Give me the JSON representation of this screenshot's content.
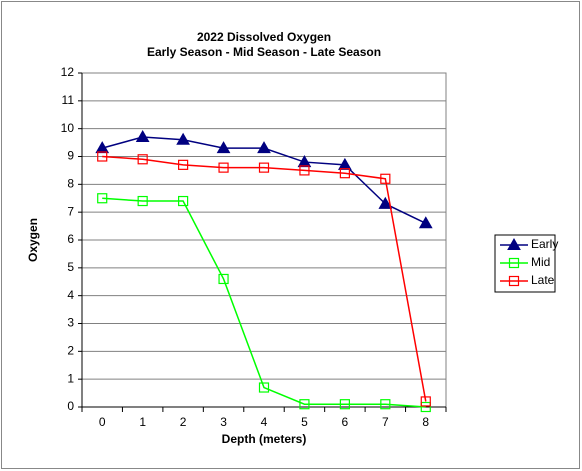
{
  "chart_data": {
    "type": "line",
    "title": "2022  Dissolved Oxygen",
    "subtitle": "Early Season - Mid Season - Late Season",
    "x_label": "Depth (meters)",
    "y_label": "Oxygen",
    "categories": [
      "0",
      "1",
      "2",
      "3",
      "4",
      "5",
      "6",
      "7",
      "8"
    ],
    "series": [
      {
        "name": "Early",
        "color": "#000080",
        "marker": "triangle",
        "values": [
          9.3,
          9.7,
          9.6,
          9.3,
          9.3,
          8.8,
          8.7,
          7.3,
          6.6
        ]
      },
      {
        "name": "Mid",
        "color": "#00ff00",
        "marker": "square",
        "values": [
          7.5,
          7.4,
          7.4,
          4.6,
          0.7,
          0.1,
          0.1,
          0.1,
          0.0
        ]
      },
      {
        "name": "Late",
        "color": "#ff0000",
        "marker": "square",
        "values": [
          9.0,
          8.9,
          8.7,
          8.6,
          8.6,
          8.5,
          8.4,
          8.2,
          0.2
        ]
      }
    ],
    "ylim": [
      0,
      12
    ],
    "yticks": [
      0,
      1,
      2,
      3,
      4,
      5,
      6,
      7,
      8,
      9,
      10,
      11,
      12
    ],
    "grid": true,
    "legend": "right"
  }
}
